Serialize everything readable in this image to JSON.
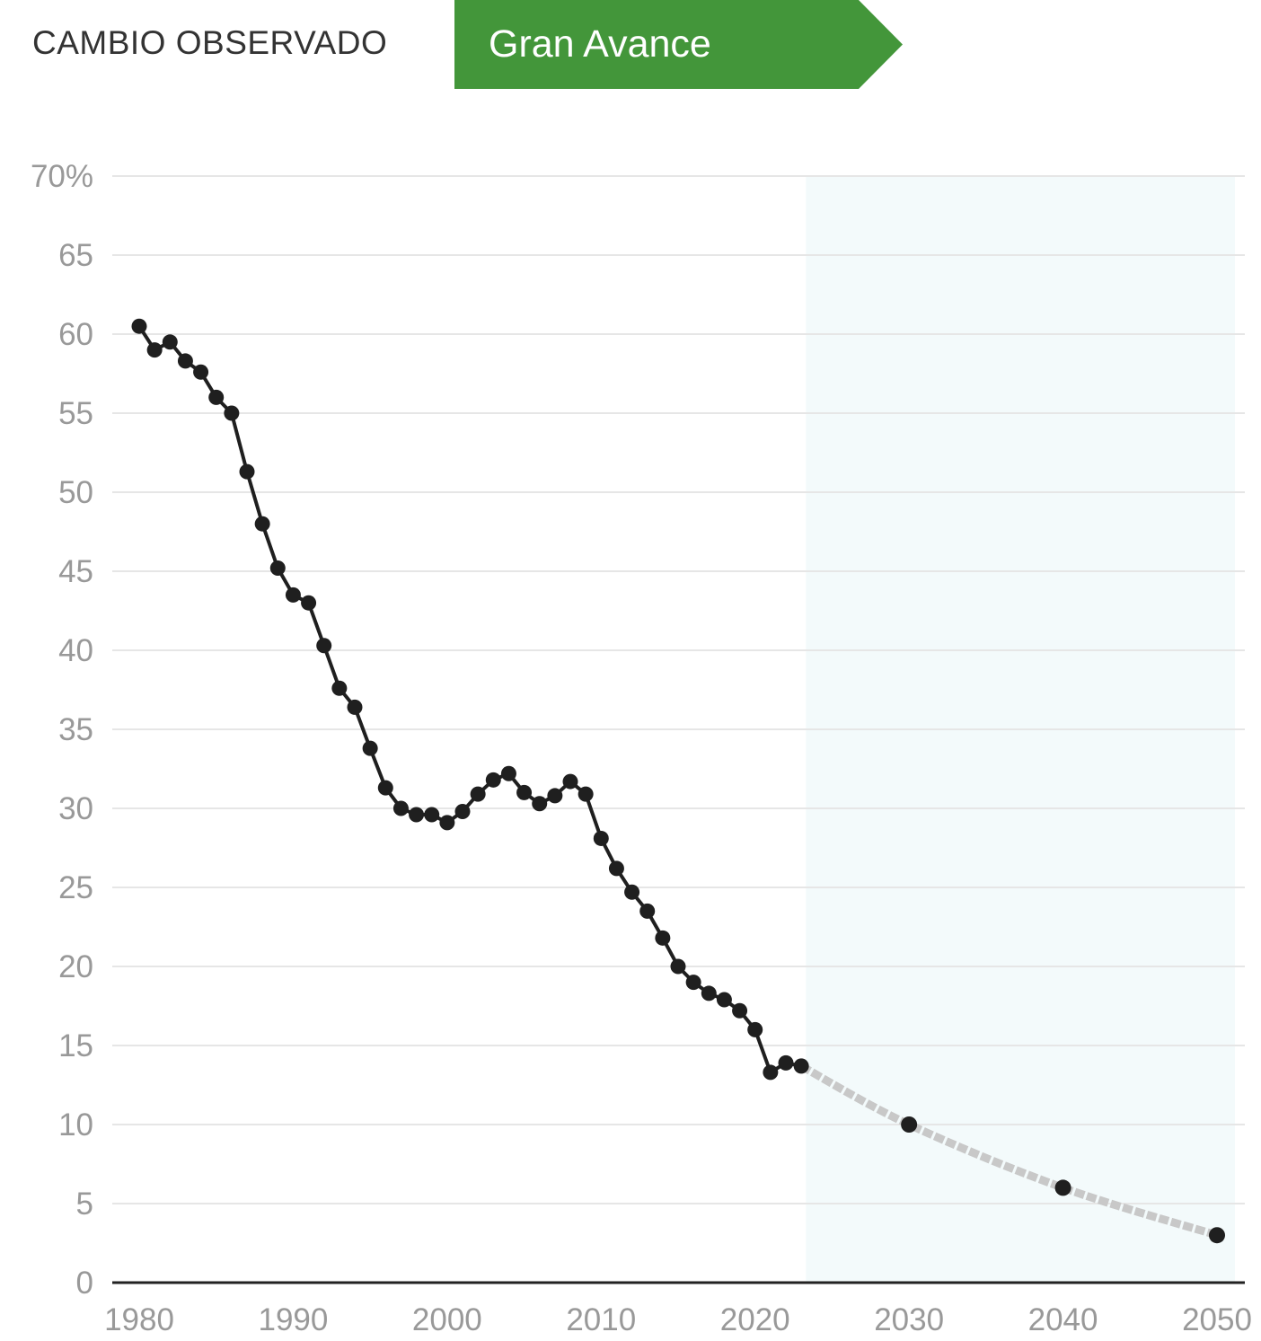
{
  "header": {
    "label": "CAMBIO OBSERVADO",
    "badge_label": "Gran Avance",
    "badge_color": "#43963a"
  },
  "chart_data": {
    "type": "line",
    "title": "",
    "xlabel": "",
    "ylabel": "",
    "xlim": [
      1980,
      2050
    ],
    "ylim": [
      0,
      70
    ],
    "y_ticks": [
      "70%",
      "65",
      "60",
      "55",
      "50",
      "45",
      "40",
      "35",
      "30",
      "25",
      "20",
      "15",
      "10",
      "5",
      "0"
    ],
    "x_ticks": [
      "1980",
      "1990",
      "2000",
      "2010",
      "2020",
      "2030",
      "2040",
      "2050"
    ],
    "grid": true,
    "projection_shade_from": 2023.3,
    "series": [
      {
        "style": "observed",
        "color": "#1f1f1f",
        "points": [
          [
            1980,
            60.5
          ],
          [
            1981,
            59.0
          ],
          [
            1982,
            59.5
          ],
          [
            1983,
            58.3
          ],
          [
            1984,
            57.6
          ],
          [
            1985,
            56.0
          ],
          [
            1986,
            55.0
          ],
          [
            1987,
            51.3
          ],
          [
            1988,
            48.0
          ],
          [
            1989,
            45.2
          ],
          [
            1990,
            43.5
          ],
          [
            1991,
            43.0
          ],
          [
            1992,
            40.3
          ],
          [
            1993,
            37.6
          ],
          [
            1994,
            36.4
          ],
          [
            1995,
            33.8
          ],
          [
            1996,
            31.3
          ],
          [
            1997,
            30.0
          ],
          [
            1998,
            29.6
          ],
          [
            1999,
            29.6
          ],
          [
            2000,
            29.1
          ],
          [
            2001,
            29.8
          ],
          [
            2002,
            30.9
          ],
          [
            2003,
            31.8
          ],
          [
            2004,
            32.2
          ],
          [
            2005,
            31.0
          ],
          [
            2006,
            30.3
          ],
          [
            2007,
            30.8
          ],
          [
            2008,
            31.7
          ],
          [
            2009,
            30.9
          ],
          [
            2010,
            28.1
          ],
          [
            2011,
            26.2
          ],
          [
            2012,
            24.7
          ],
          [
            2013,
            23.5
          ],
          [
            2014,
            21.8
          ],
          [
            2015,
            20.0
          ],
          [
            2016,
            19.0
          ],
          [
            2017,
            18.3
          ],
          [
            2018,
            17.9
          ],
          [
            2019,
            17.2
          ],
          [
            2020,
            16.0
          ],
          [
            2021,
            13.3
          ],
          [
            2022,
            13.9
          ],
          [
            2023,
            13.7
          ]
        ]
      },
      {
        "style": "projection",
        "color": "#c8c8c8",
        "curve": [
          [
            2023,
            13.7
          ],
          [
            2030,
            10.0
          ],
          [
            2040,
            6.0
          ],
          [
            2050,
            3.0
          ]
        ],
        "markers": [
          [
            2030,
            10.0
          ],
          [
            2040,
            6.0
          ],
          [
            2050,
            3.0
          ]
        ]
      }
    ]
  }
}
